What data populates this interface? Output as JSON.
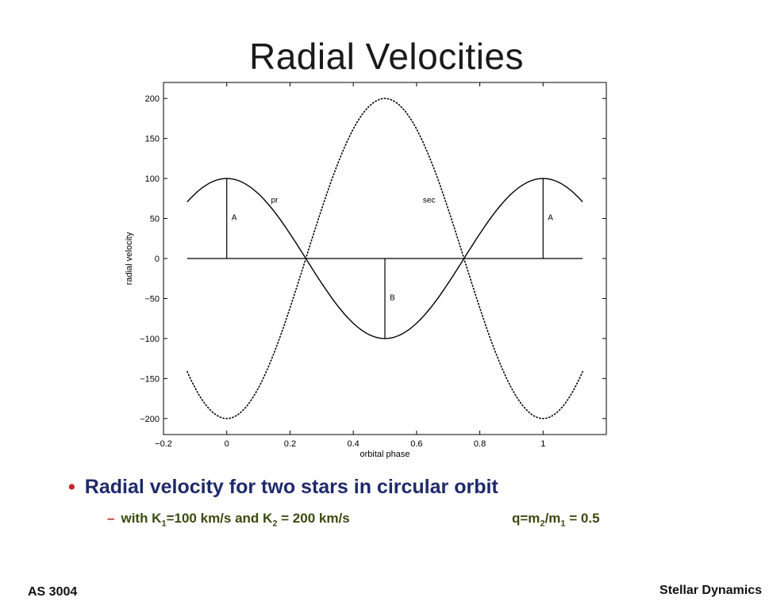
{
  "slide": {
    "title": "Radial Velocities",
    "bullet": "Radial velocity for two stars in circular orbit",
    "sub_bullet": {
      "prefix": "with K",
      "k1_sub": "1",
      "k1_rest": "=100 km/s and K",
      "k2_sub": "2",
      "k2_rest": " = 200 km/s",
      "q_prefix": "q=m",
      "q_sub1": "2",
      "q_mid": "/m",
      "q_sub2": "1",
      "q_rest": " = 0.5"
    },
    "footer_left": "AS 3004",
    "footer_right": "Stellar Dynamics"
  },
  "chart_data": {
    "type": "line",
    "title": "",
    "xlabel": "orbital phase",
    "ylabel": "radial velocity",
    "xlim": [
      -0.2,
      1.2
    ],
    "ylim": [
      -220,
      220
    ],
    "xticks": [
      -0.2,
      0,
      0.2,
      0.4,
      0.6,
      0.8,
      1
    ],
    "xtick_labels": [
      "−0.2",
      "0",
      "0.2",
      "0.4",
      "0.6",
      "0.8",
      "1"
    ],
    "yticks": [
      200,
      150,
      100,
      50,
      0,
      -50,
      -100,
      -150,
      -200
    ],
    "ytick_labels": [
      "200",
      "150",
      "100",
      "50",
      "0",
      "−50",
      "−100",
      "−150",
      "−200"
    ],
    "grid": false,
    "series": [
      {
        "name": "pr",
        "style": "solid",
        "x": [
          -0.125,
          -0.1,
          -0.05,
          0,
          0.05,
          0.1,
          0.15,
          0.2,
          0.25,
          0.3,
          0.35,
          0.4,
          0.45,
          0.5,
          0.55,
          0.6,
          0.65,
          0.7,
          0.75,
          0.8,
          0.85,
          0.9,
          0.95,
          1,
          1.05,
          1.1,
          1.125
        ],
        "y": [
          70.7,
          80.9,
          95.1,
          100,
          95.1,
          80.9,
          58.8,
          30.9,
          0,
          -30.9,
          -58.8,
          -80.9,
          -95.1,
          -100,
          -95.1,
          -80.9,
          -58.8,
          -30.9,
          0,
          30.9,
          58.8,
          80.9,
          95.1,
          100,
          95.1,
          80.9,
          70.7
        ]
      },
      {
        "name": "sec",
        "style": "dotted",
        "x": [
          -0.125,
          -0.1,
          -0.05,
          0,
          0.05,
          0.1,
          0.15,
          0.2,
          0.25,
          0.3,
          0.35,
          0.4,
          0.45,
          0.5,
          0.55,
          0.6,
          0.65,
          0.7,
          0.75,
          0.8,
          0.85,
          0.9,
          0.95,
          1,
          1.05,
          1.1,
          1.125
        ],
        "y": [
          -141.4,
          -161.8,
          -190.2,
          -200,
          -190.2,
          -161.8,
          -117.6,
          -61.8,
          0,
          61.8,
          117.6,
          161.8,
          190.2,
          200,
          190.2,
          161.8,
          117.6,
          61.8,
          0,
          -61.8,
          -117.6,
          -161.8,
          -190.2,
          -200,
          -190.2,
          -161.8,
          -141.4
        ]
      }
    ],
    "reference_lines": [
      {
        "type": "horizontal",
        "y": 0,
        "x_from": -0.125,
        "x_to": 1.125
      },
      {
        "type": "vertical",
        "x": 0,
        "y_from": 0,
        "y_to": 100,
        "label": "A"
      },
      {
        "type": "vertical",
        "x": 0.5,
        "y_from": 0,
        "y_to": -100,
        "label": "B"
      },
      {
        "type": "vertical",
        "x": 1,
        "y_from": 0,
        "y_to": 100,
        "label": "A"
      }
    ],
    "annotations": [
      {
        "text": "pr",
        "x": 0.14,
        "y": 70
      },
      {
        "text": "sec",
        "x": 0.62,
        "y": 70
      },
      {
        "text": "A",
        "x": 0.015,
        "y": 48
      },
      {
        "text": "B",
        "x": 0.515,
        "y": -52
      },
      {
        "text": "A",
        "x": 1.015,
        "y": 48
      }
    ]
  }
}
